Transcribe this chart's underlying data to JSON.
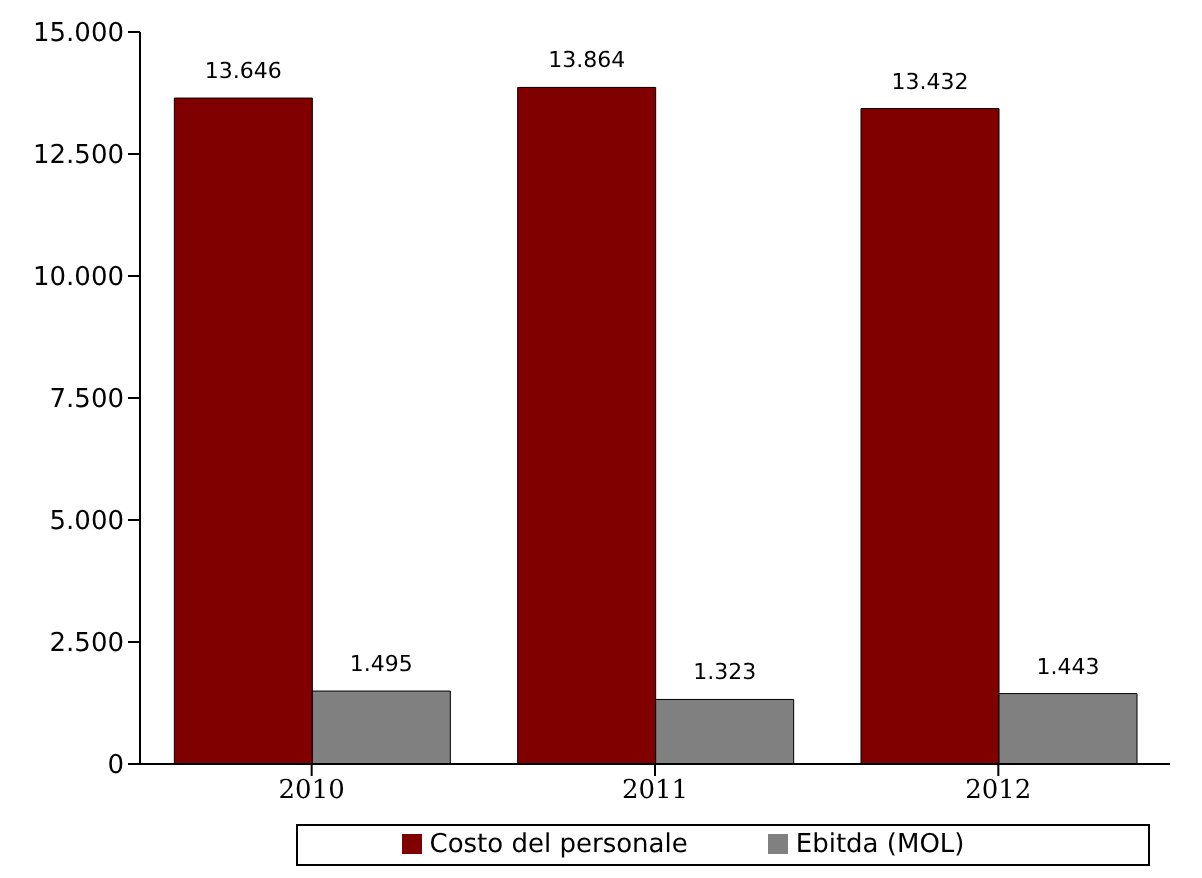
{
  "chart_data": {
    "type": "bar",
    "categories": [
      "2010",
      "2011",
      "2012"
    ],
    "series": [
      {
        "name": "Costo del personale",
        "color": "#800000",
        "values": [
          13646,
          13864,
          13432
        ],
        "value_labels": [
          "13.646",
          "13.864",
          "13.432"
        ]
      },
      {
        "name": "Ebitda (MOL)",
        "color": "#808080",
        "values": [
          1495,
          1323,
          1443
        ],
        "value_labels": [
          "1.495",
          "1.323",
          "1.443"
        ]
      }
    ],
    "ylim": [
      0,
      15000
    ],
    "yticks": [
      {
        "value": 0,
        "label": "0"
      },
      {
        "value": 2500,
        "label": "2.500"
      },
      {
        "value": 5000,
        "label": "5.000"
      },
      {
        "value": 7500,
        "label": "7.500"
      },
      {
        "value": 10000,
        "label": "10.000"
      },
      {
        "value": 12500,
        "label": "12.500"
      },
      {
        "value": 15000,
        "label": "15.000"
      }
    ],
    "grid": false,
    "legend": "bottom"
  }
}
